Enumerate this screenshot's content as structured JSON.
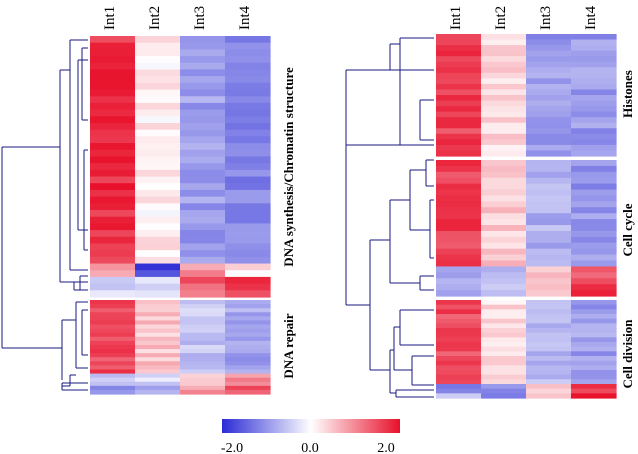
{
  "chart_data": {
    "type": "heatmap",
    "columns": [
      "Int1",
      "Int2",
      "Int3",
      "Int4"
    ],
    "colorbar": {
      "min": -2.0,
      "max": 2.0,
      "ticks": [
        "-2.0",
        "0.0",
        "2.0"
      ],
      "colors": {
        "low": "#2b2bd6",
        "mid": "#ffffff",
        "high": "#e8102a"
      }
    },
    "panels": [
      {
        "name": "left",
        "groups": [
          {
            "label": "DNA synthesis/Chromatin structure",
            "blocks": [
              {
                "rows": 34,
                "values": [
                  1.75,
                  0.15,
                  -0.9,
                  -1.15
                ]
              },
              {
                "rows": 2,
                "values": [
                  0.9,
                  -1.7,
                  0.9,
                  0.2
                ]
              },
              {
                "rows": 2,
                "values": [
                  -0.7,
                  -0.4,
                  1.3,
                  1.6
                ]
              },
              {
                "rows": 1,
                "values": [
                  -0.4,
                  -0.2,
                  1.2,
                  1.5
                ]
              }
            ]
          },
          {
            "label": "DNA repair",
            "blocks": [
              {
                "rows": 18,
                "values": [
                  1.5,
                  0.5,
                  -0.55,
                  -0.85
                ]
              },
              {
                "rows": 3,
                "values": [
                  -0.6,
                  -0.4,
                  0.6,
                  0.9
                ]
              },
              {
                "rows": 2,
                "values": [
                  -1.0,
                  -0.7,
                  0.8,
                  1.5
                ]
              }
            ]
          }
        ]
      },
      {
        "name": "right",
        "groups": [
          {
            "label": "Histones",
            "blocks": [
              {
                "rows": 22,
                "values": [
                  1.6,
                  0.35,
                  -0.95,
                  -0.95
                ]
              }
            ]
          },
          {
            "label": "Cell cycle",
            "blocks": [
              {
                "rows": 18,
                "values": [
                  1.6,
                  0.45,
                  -0.75,
                  -1.0
                ]
              },
              {
                "rows": 2,
                "values": [
                  -1.0,
                  -0.6,
                  0.6,
                  1.3
                ]
              },
              {
                "rows": 3,
                "values": [
                  -0.7,
                  -0.4,
                  0.7,
                  1.7
                ]
              }
            ]
          },
          {
            "label": "Cell division",
            "blocks": [
              {
                "rows": 18,
                "values": [
                  1.5,
                  0.3,
                  -0.7,
                  -0.9
                ]
              },
              {
                "rows": 2,
                "values": [
                  -1.2,
                  -1.0,
                  0.5,
                  1.7
                ]
              },
              {
                "rows": 1,
                "values": [
                  -0.4,
                  -1.3,
                  0.3,
                  1.9
                ]
              }
            ]
          }
        ]
      }
    ]
  }
}
